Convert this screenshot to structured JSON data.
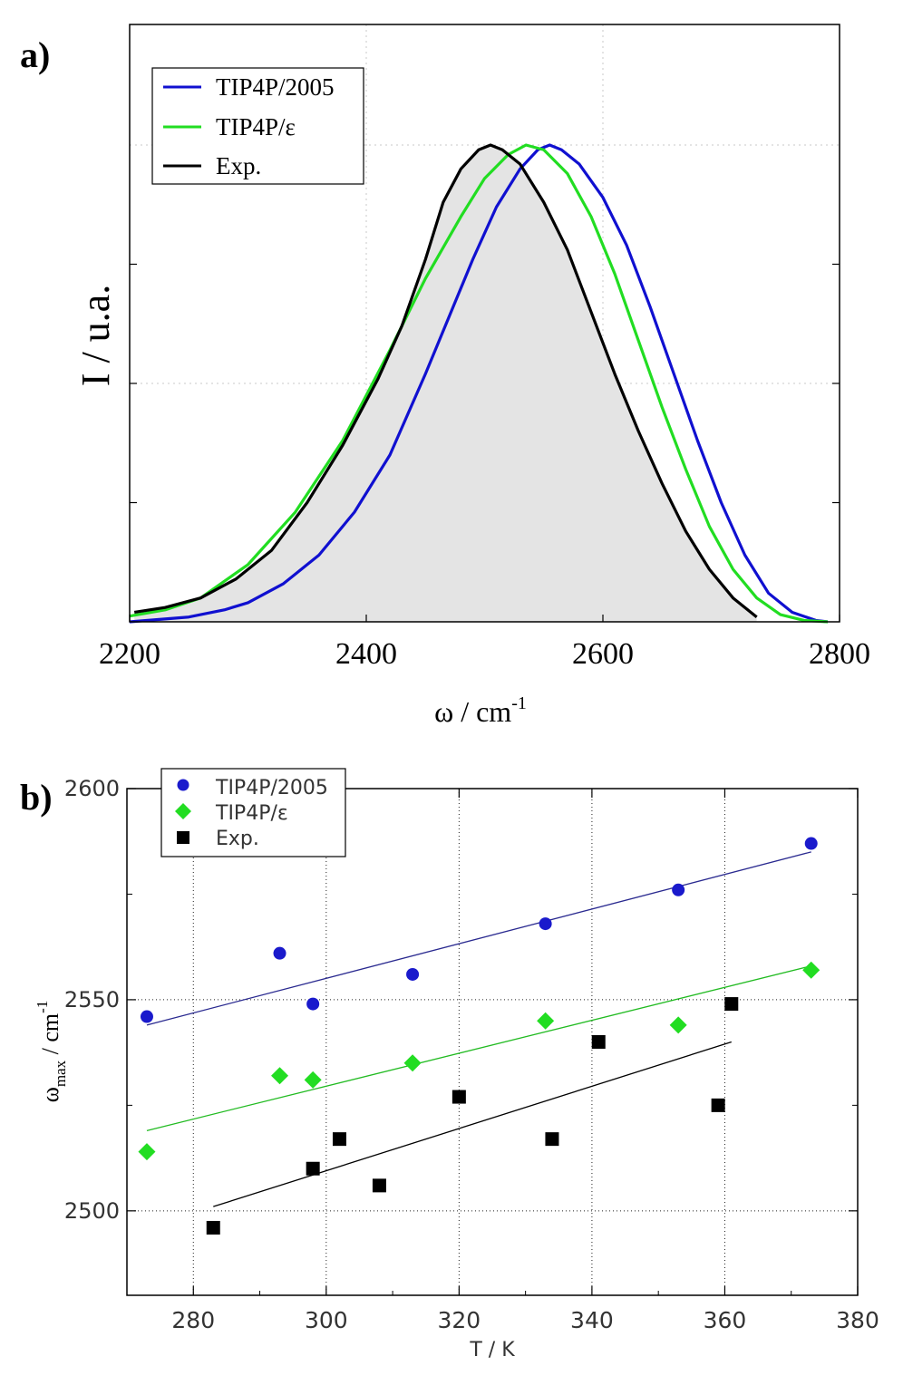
{
  "chart_data": [
    {
      "type": "line",
      "panel_label": "a)",
      "xlabel": "ω / cm",
      "xlabel_sup": "-1",
      "ylabel": "I / u.a.",
      "xlim": [
        2200,
        2800
      ],
      "ylim": [
        0,
        1
      ],
      "xticks": [
        2200,
        2400,
        2600,
        2800
      ],
      "xtick_labels": [
        "2200",
        "2400",
        "2600",
        "2800"
      ],
      "grid": true,
      "legend": "top-left",
      "series": [
        {
          "name": "TIP4P/2005",
          "color": "#1010d0",
          "x": [
            2200,
            2250,
            2280,
            2300,
            2330,
            2360,
            2390,
            2420,
            2450,
            2470,
            2490,
            2510,
            2530,
            2545,
            2555,
            2565,
            2580,
            2600,
            2620,
            2640,
            2660,
            2680,
            2700,
            2720,
            2740,
            2760,
            2780,
            2790
          ],
          "y": [
            0.0,
            0.01,
            0.025,
            0.04,
            0.08,
            0.14,
            0.23,
            0.35,
            0.52,
            0.64,
            0.76,
            0.87,
            0.95,
            0.99,
            1.0,
            0.99,
            0.96,
            0.89,
            0.79,
            0.66,
            0.52,
            0.38,
            0.25,
            0.14,
            0.06,
            0.02,
            0.003,
            0.0
          ]
        },
        {
          "name": "TIP4P/ε",
          "color": "#22dd22",
          "x": [
            2200,
            2230,
            2260,
            2300,
            2340,
            2380,
            2420,
            2450,
            2480,
            2500,
            2520,
            2535,
            2550,
            2570,
            2590,
            2610,
            2630,
            2650,
            2670,
            2690,
            2710,
            2730,
            2750,
            2770,
            2790
          ],
          "y": [
            0.012,
            0.025,
            0.05,
            0.12,
            0.23,
            0.38,
            0.57,
            0.72,
            0.85,
            0.93,
            0.98,
            1.0,
            0.99,
            0.94,
            0.85,
            0.73,
            0.59,
            0.45,
            0.32,
            0.2,
            0.11,
            0.05,
            0.015,
            0.003,
            0.0
          ]
        },
        {
          "name": "Exp.",
          "color": "#000000",
          "x": [
            2204,
            2230,
            2260,
            2290,
            2320,
            2350,
            2380,
            2410,
            2430,
            2450,
            2465,
            2480,
            2495,
            2505,
            2515,
            2530,
            2550,
            2570,
            2590,
            2610,
            2630,
            2650,
            2670,
            2690,
            2710,
            2730
          ],
          "y": [
            0.02,
            0.03,
            0.05,
            0.09,
            0.15,
            0.25,
            0.37,
            0.51,
            0.62,
            0.76,
            0.88,
            0.95,
            0.99,
            1.0,
            0.99,
            0.96,
            0.88,
            0.78,
            0.65,
            0.52,
            0.4,
            0.29,
            0.19,
            0.11,
            0.05,
            0.01
          ]
        }
      ]
    },
    {
      "type": "scatter",
      "panel_label": "b)",
      "xlabel": "T / K",
      "ylabel": "ω",
      "ylabel_sub": "max",
      "ylabel_rest": " / cm",
      "ylabel_sup": "-1",
      "xlim": [
        270,
        380
      ],
      "ylim": [
        2480,
        2600
      ],
      "xticks": [
        280,
        300,
        320,
        340,
        360,
        380
      ],
      "xtick_labels": [
        "280",
        "300",
        "320",
        "340",
        "360",
        "380"
      ],
      "yticks": [
        2500,
        2550,
        2600
      ],
      "ytick_labels": [
        "2500",
        "2550",
        "2600"
      ],
      "grid": true,
      "legend": "top-left",
      "series": [
        {
          "name": "TIP4P/2005",
          "marker": "circle",
          "color": "#1a1acc",
          "x": [
            273,
            293,
            298,
            313,
            333,
            353,
            373
          ],
          "y": [
            2546,
            2561,
            2549,
            2556,
            2568,
            2576,
            2587
          ],
          "fit": {
            "x": [
              273,
              373
            ],
            "y": [
              2544,
              2585
            ]
          }
        },
        {
          "name": "TIP4P/ε",
          "marker": "diamond",
          "color": "#22dd22",
          "x": [
            273,
            293,
            298,
            313,
            333,
            353,
            373
          ],
          "y": [
            2514,
            2532,
            2531,
            2535,
            2545,
            2544,
            2557
          ],
          "fit": {
            "x": [
              273,
              373
            ],
            "y": [
              2519,
              2558
            ]
          }
        },
        {
          "name": "Exp.",
          "marker": "square",
          "color": "#000000",
          "x": [
            283,
            298,
            302,
            308,
            320,
            334,
            341,
            359,
            361
          ],
          "y": [
            2496,
            2510,
            2517,
            2506,
            2527,
            2517,
            2540,
            2525,
            2549
          ],
          "fit": {
            "x": [
              283,
              361
            ],
            "y": [
              2501,
              2540
            ]
          }
        }
      ]
    }
  ]
}
